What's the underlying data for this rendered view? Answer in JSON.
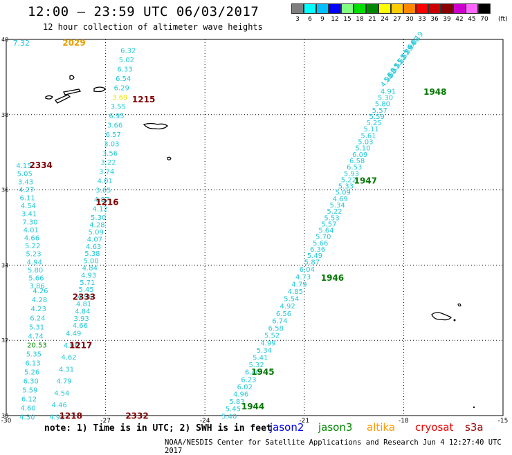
{
  "header": {
    "title": "12:00 — 23:59 UTC 06/03/2017",
    "subtitle": "12 hour collection of altimeter wave heights"
  },
  "legend": {
    "unit": "(ft)",
    "items": [
      {
        "label": "3",
        "color": "#7f7f7f"
      },
      {
        "label": "6",
        "color": "#00ffff"
      },
      {
        "label": "9",
        "color": "#00bfff"
      },
      {
        "label": "12",
        "color": "#0000ff"
      },
      {
        "label": "15",
        "color": "#80ff80"
      },
      {
        "label": "18",
        "color": "#00e000"
      },
      {
        "label": "21",
        "color": "#008800"
      },
      {
        "label": "24",
        "color": "#ffff00"
      },
      {
        "label": "27",
        "color": "#ffcc00"
      },
      {
        "label": "30",
        "color": "#ff8800"
      },
      {
        "label": "33",
        "color": "#ff0000"
      },
      {
        "label": "36",
        "color": "#cc0000"
      },
      {
        "label": "39",
        "color": "#880000"
      },
      {
        "label": "42",
        "color": "#cc00cc"
      },
      {
        "label": "45",
        "color": "#ff66ff"
      },
      {
        "label": "70",
        "color": "#000000"
      }
    ]
  },
  "map": {
    "lon_ticks": [
      "-30",
      "-27",
      "-24",
      "-21",
      "-18",
      "-15"
    ],
    "lat_ticks": [
      "40",
      "38",
      "36",
      "34",
      "32",
      "30"
    ],
    "lon_range": [
      -30,
      -15
    ],
    "lat_range": [
      30,
      40
    ],
    "grid": "dotted"
  },
  "pass_labels": [
    {
      "text": "2029",
      "color": "#e6a000",
      "lon": -28.3,
      "lat": 39.83
    },
    {
      "text": "1215",
      "color": "#800000",
      "lon": -26.2,
      "lat": 38.33
    },
    {
      "text": "2334",
      "color": "#800000",
      "lon": -29.3,
      "lat": 36.58
    },
    {
      "text": "1216",
      "color": "#800000",
      "lon": -27.3,
      "lat": 35.6
    },
    {
      "text": "2333",
      "color": "#800000",
      "lon": -28.0,
      "lat": 33.08
    },
    {
      "text": "1217",
      "color": "#800000",
      "lon": -28.1,
      "lat": 31.79
    },
    {
      "text": "1218",
      "color": "#800000",
      "lon": -28.4,
      "lat": 29.92
    },
    {
      "text": "2332",
      "color": "#800000",
      "lon": -26.4,
      "lat": 29.92
    },
    {
      "text": "1948",
      "color": "#007700",
      "lon": -17.4,
      "lat": 38.53
    },
    {
      "text": "1947",
      "color": "#007700",
      "lon": -19.5,
      "lat": 36.17
    },
    {
      "text": "1946",
      "color": "#007700",
      "lon": -20.5,
      "lat": 33.58
    },
    {
      "text": "1945",
      "color": "#007700",
      "lon": -22.6,
      "lat": 31.08
    },
    {
      "text": "1944",
      "color": "#007700",
      "lon": -22.9,
      "lat": 30.17
    }
  ],
  "tracks": {
    "top_left_value": {
      "text": "7.32",
      "lon": -29.8,
      "lat": 39.83
    },
    "track_a": {
      "start": [
        -26.55,
        39.64
      ],
      "end": [
        -27.4,
        35.43
      ],
      "values": [
        "6.32",
        "5.02",
        "6.33",
        "6.54",
        "6.29",
        "3.69",
        "3.55",
        "6.95",
        "3.66",
        "6.57",
        "3.03",
        "3.56",
        "3.22",
        "3.74",
        "4.01",
        "3.65",
        "4.87",
        "4.12"
      ]
    },
    "track_b": {
      "start": [
        -27.45,
        35.2
      ],
      "end": [
        -28.0,
        32.33
      ],
      "values": [
        "5.30",
        "4.28",
        "5.09",
        "4.07",
        "4.63",
        "5.38",
        "5.00",
        "4.84",
        "4.93",
        "5.71",
        "5.45",
        "4.96",
        "4.81",
        "4.84",
        "3.93",
        "4.66"
      ]
    },
    "track_c": {
      "start": [
        -28.2,
        32.12
      ],
      "end": [
        -28.7,
        29.9
      ],
      "values": [
        "4.49",
        "4.06",
        "4.62",
        "4.31",
        "4.79",
        "4.54",
        "4.46",
        "4.98"
      ]
    },
    "track_d": {
      "start": [
        -29.7,
        36.58
      ],
      "end": [
        -29.3,
        33.38
      ],
      "values": [
        "4.15",
        "5.05",
        "3.43",
        "4.27",
        "6.11",
        "4.54",
        "3.41",
        "7.30",
        "4.01",
        "4.66",
        "5.22",
        "5.23",
        "4.94",
        "5.80",
        "5.66",
        "3.86"
      ]
    },
    "track_e": {
      "start": [
        -29.2,
        33.25
      ],
      "end": [
        -29.6,
        29.9
      ],
      "values": [
        "4.26",
        "4.28",
        "4.23",
        "6.24",
        "5.31",
        "4.74",
        "20.53",
        "5.35",
        "6.13",
        "5.26",
        "6.30",
        "5.59",
        "6.12",
        "4.60",
        "4.30"
      ]
    },
    "track_f": {
      "start": [
        -18.7,
        38.56
      ],
      "end": [
        -21.0,
        34.02
      ],
      "values": [
        "4.91",
        "5.30",
        "5.80",
        "5.57",
        "5.59",
        "5.25",
        "5.11",
        "5.61",
        "5.03",
        "5.10",
        "6.09",
        "6.58",
        "6.53",
        "5.93",
        "5.22",
        "5.33",
        "5.09",
        "4.69",
        "5.34",
        "5.22",
        "5.53",
        "5.57",
        "5.64",
        "5.70",
        "5.66",
        "6.36",
        "5.49",
        "5.87"
      ]
    },
    "track_g": {
      "start": [
        -21.15,
        33.82
      ],
      "end": [
        -23.5,
        29.92
      ],
      "values": [
        "6.04",
        "4.73",
        "4.79",
        "4.85",
        "5.54",
        "4.92",
        "6.56",
        "6.74",
        "6.58",
        "5.52",
        "4.99",
        "5.34",
        "5.41",
        "5.32",
        "6.40",
        "6.23",
        "6.02",
        "4.96",
        "5.83",
        "5.45",
        "5.40"
      ]
    },
    "track_top_cluster": {
      "start": [
        -17.7,
        39.83
      ],
      "end": [
        -18.6,
        38.72
      ],
      "values": [
        "6.19",
        "6.08",
        "5.94",
        "5.89",
        "5.67",
        "5.62",
        "5.51",
        "5.37",
        "5.08",
        "4.88"
      ]
    }
  },
  "satellites": [
    {
      "name": "jason2",
      "color": "#0000ee"
    },
    {
      "name": "jason3",
      "color": "#008800"
    },
    {
      "name": "altika",
      "color": "#ff9900"
    },
    {
      "name": "cryosat",
      "color": "#ee0000"
    },
    {
      "name": "s3a",
      "color": "#990000"
    }
  ],
  "footer": {
    "note": "note: 1) Time is in UTC; 2) SWH is in feet",
    "credit": "NOAA/NESDIS Center for Satellite Applications and Research   Jun  4 12:27:40 UTC 2017"
  }
}
